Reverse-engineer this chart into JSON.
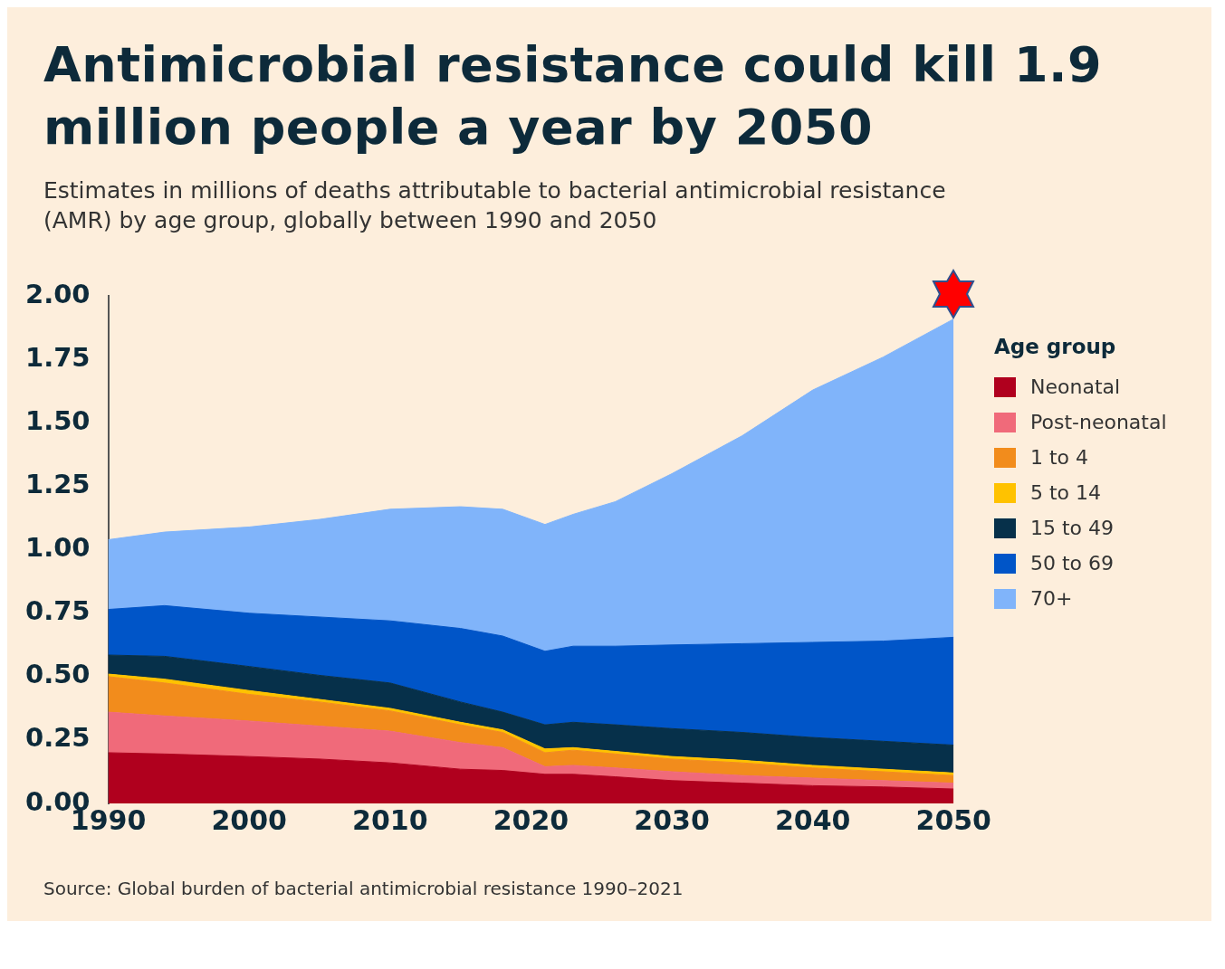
{
  "chart_data": {
    "type": "area",
    "stacked": true,
    "title": "Antimicrobial resistance could kill 1.9 million people a year by 2050",
    "subtitle": "Estimates in millions of deaths attributable to bacterial antimicrobial resistance (AMR) by age group, globally between 1990 and 2050",
    "legend_title": "Age group",
    "annotations": [
      "Source: Global burden of bacterial antimicrobial resistance 1990–2021"
    ],
    "x": [
      1990,
      1994,
      2000,
      2005,
      2010,
      2015,
      2018,
      2021,
      2023,
      2026,
      2030,
      2035,
      2040,
      2045,
      2050
    ],
    "series": [
      {
        "name": "Neonatal",
        "color": "#b0001e",
        "values": [
          0.2,
          0.195,
          0.185,
          0.175,
          0.16,
          0.135,
          0.13,
          0.115,
          0.115,
          0.105,
          0.09,
          0.08,
          0.07,
          0.065,
          0.057
        ]
      },
      {
        "name": "Post-neonatal",
        "color": "#f06a7a",
        "values": [
          0.16,
          0.15,
          0.14,
          0.13,
          0.125,
          0.105,
          0.09,
          0.03,
          0.035,
          0.035,
          0.035,
          0.03,
          0.03,
          0.025,
          0.023
        ]
      },
      {
        "name": "1 to 4",
        "color": "#f28c1c",
        "values": [
          0.14,
          0.13,
          0.105,
          0.095,
          0.08,
          0.07,
          0.06,
          0.055,
          0.06,
          0.055,
          0.05,
          0.05,
          0.04,
          0.035,
          0.03
        ]
      },
      {
        "name": "5 to 14",
        "color": "#ffc200",
        "values": [
          0.01,
          0.015,
          0.015,
          0.01,
          0.01,
          0.01,
          0.01,
          0.015,
          0.01,
          0.01,
          0.01,
          0.01,
          0.01,
          0.01,
          0.01
        ]
      },
      {
        "name": "15 to 49",
        "color": "#06304a",
        "values": [
          0.075,
          0.09,
          0.095,
          0.095,
          0.1,
          0.08,
          0.07,
          0.095,
          0.1,
          0.105,
          0.11,
          0.11,
          0.11,
          0.11,
          0.11
        ]
      },
      {
        "name": "50 to 69",
        "color": "#0055c8",
        "values": [
          0.18,
          0.2,
          0.21,
          0.23,
          0.245,
          0.29,
          0.3,
          0.29,
          0.3,
          0.31,
          0.33,
          0.35,
          0.375,
          0.395,
          0.425
        ]
      },
      {
        "name": "70+",
        "color": "#80b4fa",
        "values": [
          0.275,
          0.29,
          0.34,
          0.385,
          0.44,
          0.48,
          0.5,
          0.5,
          0.52,
          0.57,
          0.675,
          0.82,
          0.995,
          1.12,
          1.255
        ]
      }
    ],
    "xlim": [
      1990,
      2050
    ],
    "xticks": [
      1990,
      2000,
      2010,
      2020,
      2030,
      2040,
      2050
    ],
    "ylim": [
      0,
      2
    ],
    "yticks": [
      {
        "value": 0,
        "label": "0.00"
      },
      {
        "value": 0.25,
        "label": "0.25"
      },
      {
        "value": 0.5,
        "label": "0.50"
      },
      {
        "value": 0.75,
        "label": "0.75"
      },
      {
        "value": 1,
        "label": "1.00"
      },
      {
        "value": 1.25,
        "label": "1.25"
      },
      {
        "value": 1.5,
        "label": "1.50"
      },
      {
        "value": 1.75,
        "label": "1.75"
      },
      {
        "value": 2,
        "label": "2.00"
      }
    ],
    "grid": false,
    "legend": "right",
    "marker": "none"
  }
}
